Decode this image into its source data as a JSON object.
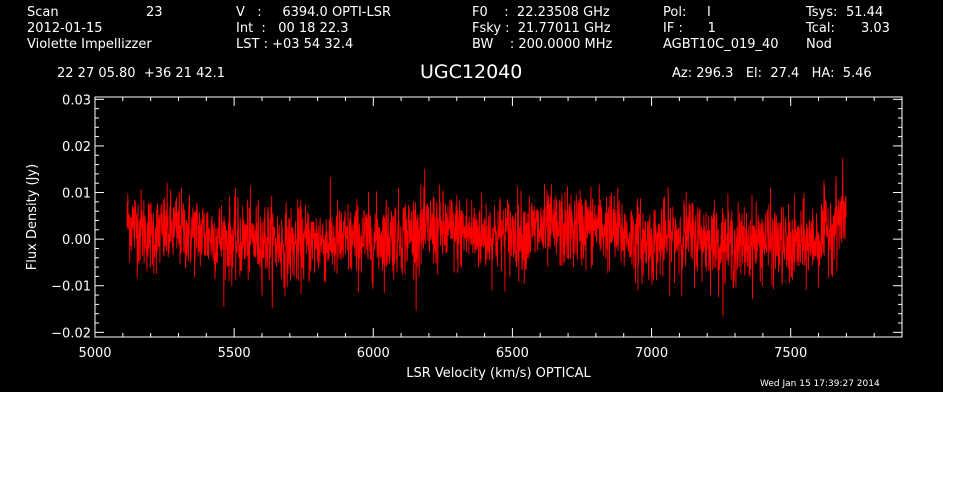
{
  "header": {
    "scan_label": "Scan",
    "scan_number": "23",
    "date": "2012-01-15",
    "observer": "Violette Impellizzer",
    "velocity": "V   :     6394.0 OPTI-LSR",
    "int_time": "Int  :   00 18 22.3",
    "lst": "LST : +03 54 32.4",
    "f0": "F0    :  22.23508 GHz",
    "fsky": "Fsky :  21.77011 GHz",
    "bw": "BW    : 200.0000 MHz",
    "pol": "Pol:     I",
    "if": "IF :      1",
    "project": "AGBT10C_019_40",
    "tsys_label": "Tsys:",
    "tsys_value": "51.44",
    "tcal_label": "Tcal:",
    "tcal_value": "3.03",
    "mode": "Nod",
    "coords": "22 27 05.80  +36 21 42.1",
    "object": "UGC12040",
    "pointing": "Az: 296.3   El:  27.4   HA:  5.46",
    "timestamp": "Wed Jan 15 17:39:27 2014"
  },
  "chart_data": {
    "type": "line",
    "xlabel": "LSR Velocity (km/s) OPTICAL",
    "ylabel": "Flux Density (Jy)",
    "xlim": [
      5000,
      7900
    ],
    "ylim": [
      -0.021,
      0.0305
    ],
    "x_ticks": [
      5000,
      5500,
      6000,
      6500,
      7000,
      7500
    ],
    "x_tick_labels": [
      "5000",
      "5500",
      "6000",
      "6500",
      "7000",
      "7500"
    ],
    "y_ticks": [
      -0.02,
      -0.01,
      0.0,
      0.01,
      0.02,
      0.03
    ],
    "y_tick_labels": [
      "−0.02",
      "−0.01",
      "0.00",
      "0.01",
      "0.02",
      "0.03"
    ],
    "grid": false,
    "line_color": "#ff0000",
    "series": [
      {
        "x_range": [
          5115,
          7700
        ],
        "baseline": [
          [
            5115,
            0.004
          ],
          [
            5200,
            0.001
          ],
          [
            5300,
            0.002
          ],
          [
            5400,
            0.001
          ],
          [
            5500,
            -0.0005
          ],
          [
            5600,
            0.0
          ],
          [
            5700,
            -0.0015
          ],
          [
            5800,
            -0.0005
          ],
          [
            5900,
            -0.0005
          ],
          [
            6000,
            0.0
          ],
          [
            6100,
            0.001
          ],
          [
            6200,
            0.002
          ],
          [
            6300,
            0.0015
          ],
          [
            6400,
            0.001
          ],
          [
            6500,
            0.001
          ],
          [
            6600,
            0.002
          ],
          [
            6700,
            0.002
          ],
          [
            6800,
            0.003
          ],
          [
            6900,
            0.001
          ],
          [
            7000,
            -0.001
          ],
          [
            7100,
            0.001
          ],
          [
            7200,
            0.0
          ],
          [
            7300,
            -0.0015
          ],
          [
            7400,
            0.0
          ],
          [
            7500,
            -0.002
          ],
          [
            7600,
            0.0
          ],
          [
            7700,
            0.006
          ]
        ],
        "noise_rms": 0.0042
      }
    ]
  }
}
